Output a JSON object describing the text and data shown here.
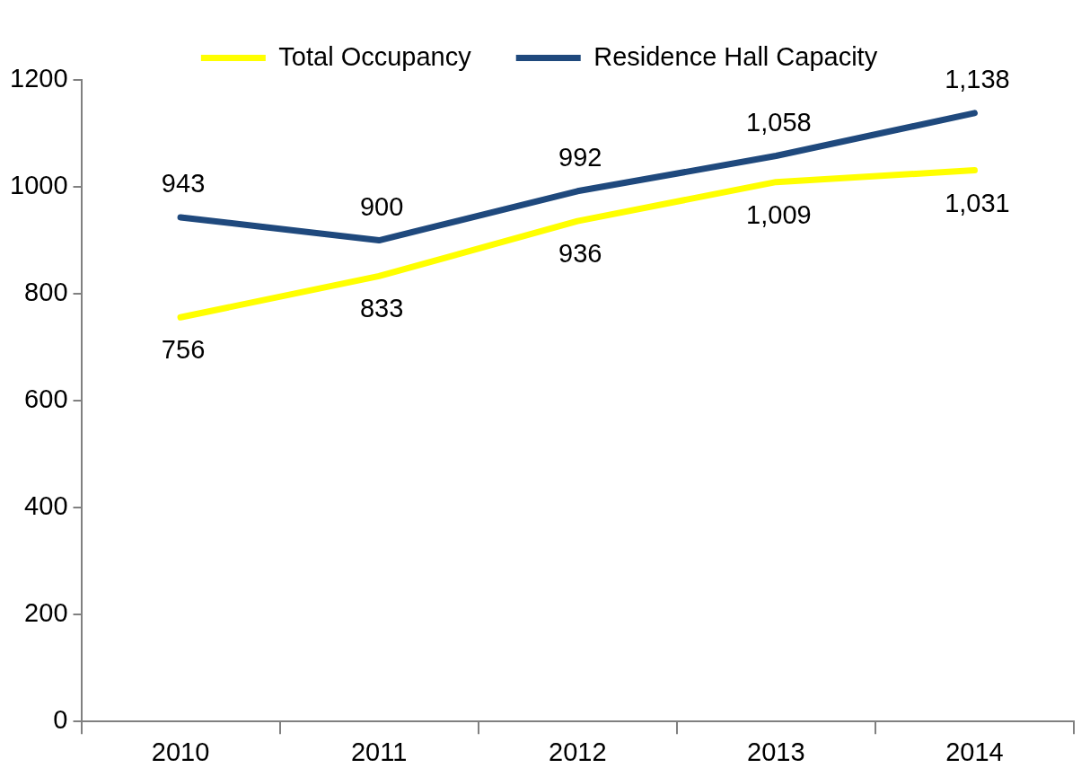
{
  "chart_data": {
    "type": "line",
    "categories": [
      "2010",
      "2011",
      "2012",
      "2013",
      "2014"
    ],
    "series": [
      {
        "name": "Total Occupancy",
        "color": "#ffff00",
        "values": [
          756,
          833,
          936,
          1009,
          1031
        ],
        "value_labels": [
          "756",
          "833",
          "936",
          "1,009",
          "1,031"
        ]
      },
      {
        "name": "Residence Hall Capacity",
        "color": "#1f497d",
        "values": [
          943,
          900,
          992,
          1058,
          1138
        ],
        "value_labels": [
          "943",
          "900",
          "992",
          "1,058",
          "1,138"
        ]
      }
    ],
    "ylim": [
      0,
      1200
    ],
    "yticks": [
      0,
      200,
      400,
      600,
      800,
      1000,
      1200
    ],
    "grid": false,
    "legend": "top",
    "marker": "none",
    "line_style": "solid"
  }
}
